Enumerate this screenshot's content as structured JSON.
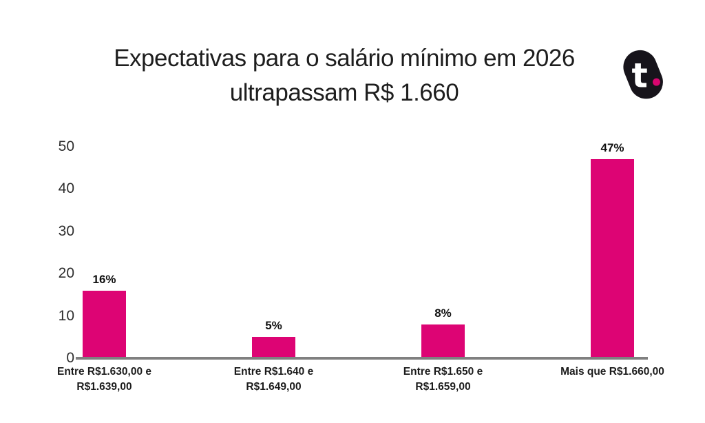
{
  "header": {
    "title_lines": [
      "Expectativas para o salário mínimo em 2026",
      "ultrapassam R$ 1.660"
    ]
  },
  "logo": {
    "letter": "t",
    "blob_color": "#17141B",
    "dot_color": "#D9056F"
  },
  "chart_data": {
    "type": "bar",
    "title": "Expectativas para o salário mínimo em 2026 ultrapassam R$ 1.660",
    "categories": [
      "Entre R$1.630,00 e R$1.639,00",
      "Entre R$1.640 e R$1.649,00",
      "Entre R$1.650 e R$1.659,00",
      "Mais que R$1.660,00"
    ],
    "category_label_lines": [
      [
        "Entre R$1.630,00 e",
        "R$1.639,00"
      ],
      [
        "Entre R$1.640 e",
        "R$1.649,00"
      ],
      [
        "Entre R$1.650 e",
        "R$1.659,00"
      ],
      [
        "Mais que R$1.660,00"
      ]
    ],
    "values": [
      16,
      5,
      8,
      47
    ],
    "value_labels": [
      "16%",
      "5%",
      "8%",
      "47%"
    ],
    "yticks": [
      50,
      40,
      30,
      20,
      10,
      0
    ],
    "ylim": [
      0,
      50
    ],
    "xlabel": "",
    "ylabel": "",
    "grid": false,
    "legend": false,
    "bar_color": "#DD0474",
    "baseline_color": "#808080",
    "tick_text_color": "#2E2E2E",
    "label_text_color": "#1B1B1B"
  }
}
